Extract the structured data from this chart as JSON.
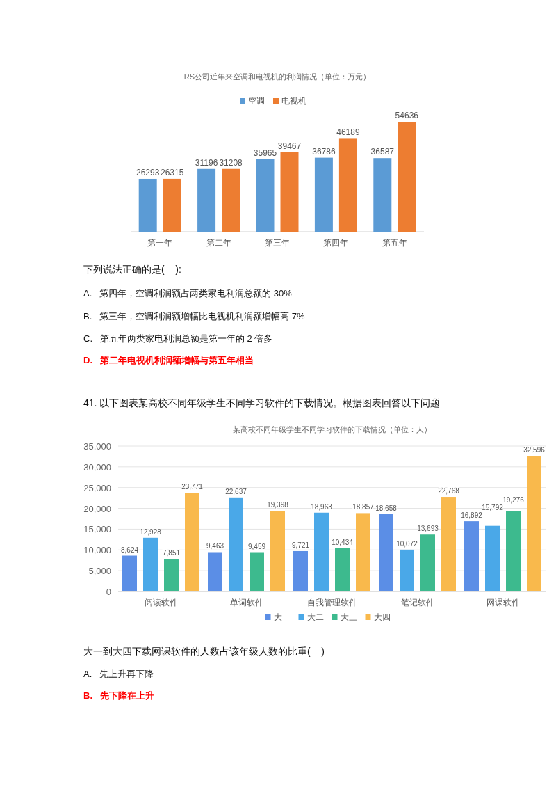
{
  "chart_data": [
    {
      "type": "bar",
      "title": "RS公司近年来空调和电视机的利润情况（单位：万元）",
      "categories": [
        "第一年",
        "第二年",
        "第三年",
        "第四年",
        "第五年"
      ],
      "series": [
        {
          "name": "空调",
          "color": "#5b9bd5",
          "values": [
            26293,
            31196,
            35965,
            36786,
            36587
          ]
        },
        {
          "name": "电视机",
          "color": "#ed7d31",
          "values": [
            26315,
            31208,
            39467,
            46189,
            54636
          ]
        }
      ],
      "data_labels": true,
      "legend": "top",
      "annotations": [
        "下列说法正确的是(    ):",
        "A.   第四年，空调利润额占两类家电利润总额的 30%",
        "B.   第三年，空调利润额增幅比电视机利润额增幅高 7%",
        "C.   第五年两类家电利润总额是第一年的 2 倍多",
        "D.   第二年电视机利润额增幅与第五年相当"
      ]
    },
    {
      "type": "bar",
      "title": "某高校不同年级学生不同学习软件的下载情况（单位：人）",
      "categories": [
        "阅读软件",
        "单词软件",
        "自我管理软件",
        "笔记软件",
        "网课软件"
      ],
      "series": [
        {
          "name": "大一",
          "color": "#5b8ee6",
          "values": [
            8624,
            9463,
            9721,
            18658,
            16892
          ],
          "value_labels": [
            "8,624",
            "9,463",
            "9,721",
            "18,658",
            "16,892"
          ]
        },
        {
          "name": "大二",
          "color": "#4aa8e8",
          "values": [
            12928,
            22637,
            18963,
            10072,
            15792
          ],
          "value_labels": [
            "12,928",
            "22,637",
            "18,963",
            "10,072",
            "15,792"
          ]
        },
        {
          "name": "大三",
          "color": "#3dba8e",
          "values": [
            7851,
            9459,
            10434,
            13693,
            19276
          ],
          "value_labels": [
            "7,851",
            "9,459",
            "10,434",
            "13,693",
            "19,276"
          ]
        },
        {
          "name": "大四",
          "color": "#f9b94c",
          "values": [
            23771,
            19398,
            18857,
            22768,
            32596
          ],
          "value_labels": [
            "23,771",
            "19,398",
            "18,857",
            "22,768",
            "32,596"
          ]
        }
      ],
      "ylim": [
        0,
        35000
      ],
      "yticks": [
        0,
        {
          "value": 5000,
          "label": "5,000"
        },
        {
          "value": 10000,
          "label": "10,000"
        },
        {
          "value": 15000,
          "label": "15,000"
        },
        {
          "value": 20000,
          "label": "20,000"
        },
        {
          "value": 25000,
          "label": "25,000"
        },
        {
          "value": 30000,
          "label": "30,000"
        },
        {
          "value": 35000,
          "label": "35,000"
        }
      ],
      "grid": "y",
      "legend": "bottom",
      "annotations": [
        "41. 以下图表某高校不同年级学生不同学习软件的下载情况。根据图表回答以下问题",
        "大一到大四下载网课软件的人数占该年级人数的比重(    )",
        "A.   先上升再下降",
        "B.   先下降在上升"
      ]
    }
  ]
}
